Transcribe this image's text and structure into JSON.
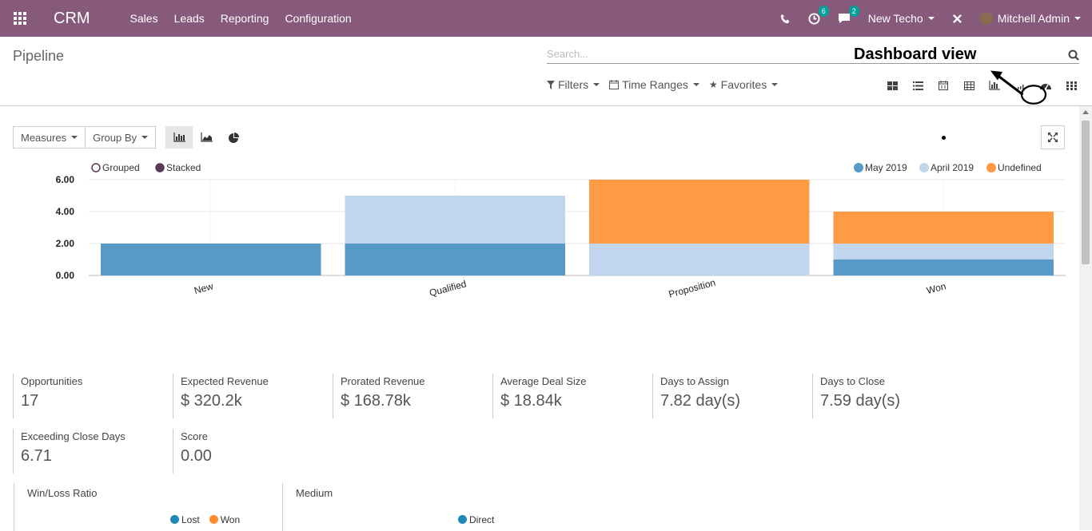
{
  "navbar": {
    "brand": "CRM",
    "menu": [
      "Sales",
      "Leads",
      "Reporting",
      "Configuration"
    ],
    "activity_count": "6",
    "messages_count": "2",
    "company": "New Techo",
    "user": "Mitchell Admin"
  },
  "control_panel": {
    "breadcrumb": "Pipeline",
    "search_placeholder": "Search...",
    "annotation": "Dashboard view",
    "filters_label": "Filters",
    "time_ranges_label": "Time Ranges",
    "favorites_label": "Favorites",
    "views": [
      "kanban-view",
      "list-view",
      "calendar-view",
      "pivot-view",
      "graph-view",
      "cohort-view",
      "dashboard-view",
      "activity-view"
    ]
  },
  "graph_toolbar": {
    "measures_label": "Measures",
    "group_by_label": "Group By"
  },
  "chart_data": {
    "type": "bar",
    "stacked": true,
    "categories": [
      "New",
      "Qualified",
      "Proposition",
      "Won"
    ],
    "series": [
      {
        "name": "May 2019",
        "color": "#5799c7",
        "values": [
          2,
          2,
          0,
          1
        ]
      },
      {
        "name": "April 2019",
        "color": "#c1d5ee",
        "values": [
          0,
          3,
          2,
          1
        ]
      },
      {
        "name": "Undefined",
        "color": "#ff9b45",
        "values": [
          0,
          0,
          4,
          2
        ]
      }
    ],
    "y_ticks": [
      "0.00",
      "2.00",
      "4.00",
      "6.00"
    ],
    "ylim": [
      0,
      6
    ],
    "grid": true,
    "mode_options": [
      "Grouped",
      "Stacked"
    ],
    "legend_position": "top-right"
  },
  "kpis": [
    {
      "label": "Opportunities",
      "value": "17"
    },
    {
      "label": "Expected Revenue",
      "value": "$ 320.2k"
    },
    {
      "label": "Prorated Revenue",
      "value": "$ 168.78k"
    },
    {
      "label": "Average Deal Size",
      "value": "$ 18.84k"
    },
    {
      "label": "Days to Assign",
      "value": "7.82 day(s)"
    },
    {
      "label": "Days to Close",
      "value": "7.59 day(s)"
    },
    {
      "label": "Exceeding Close Days",
      "value": "6.71"
    },
    {
      "label": "Score",
      "value": "0.00"
    }
  ],
  "pie_sections": [
    {
      "title": "Win/Loss Ratio",
      "legend": [
        {
          "name": "Lost",
          "color": "#1f88b3"
        },
        {
          "name": "Won",
          "color": "#ff8c2e"
        }
      ]
    },
    {
      "title": "Medium",
      "legend": [
        {
          "name": "Direct",
          "color": "#1f88b3"
        }
      ]
    }
  ]
}
